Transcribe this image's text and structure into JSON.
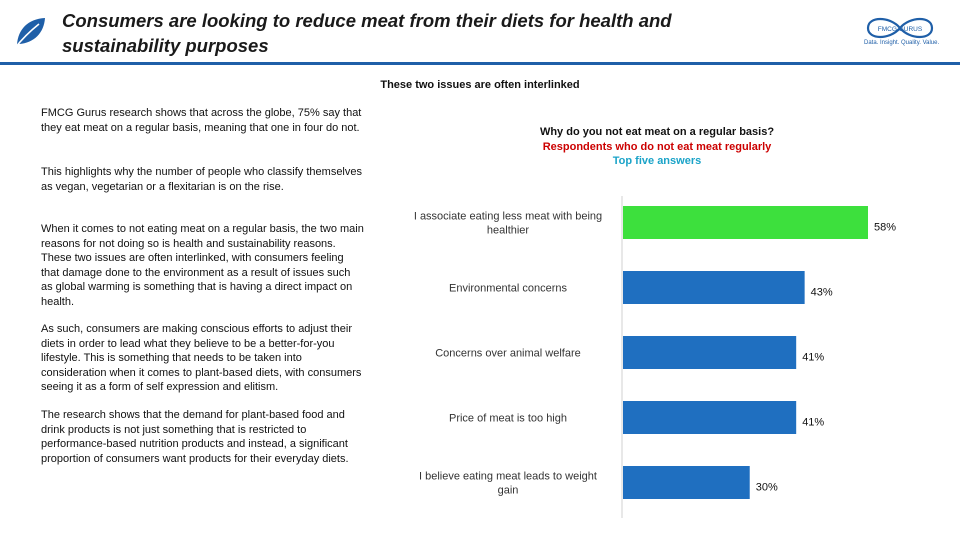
{
  "header": {
    "title": "Consumers are looking to reduce meat from their diets for health and sustainability purposes",
    "logo_text": "FMCG GURUS",
    "logo_tagline": "Data. Insight. Quality. Value."
  },
  "subtitle": "These two issues are often interlinked",
  "body_paragraphs": [
    "FMCG Gurus research shows that across the globe, 75% say that they eat meat on a regular basis, meaning that one in four do not.",
    "This highlights why the number of people who classify themselves as vegan, vegetarian or a flexitarian is on the rise.",
    "When it comes to not eating meat on a regular basis, the two main reasons for not doing so is health and sustainability reasons. These two issues are often interlinked, with consumers feeling that damage done to the environment as a result of issues such as global warming is something that is having a direct impact on health.",
    "As such, consumers are making conscious efforts to adjust their diets in order to lead what they believe to be a better-for-you lifestyle. This is something that needs to be taken into consideration when it comes to plant-based diets, with consumers seeing it as a form of self expression and elitism.",
    "The research shows that the demand for plant-based food and drink products is not just something that is restricted to performance-based nutrition products and instead, a significant proportion of consumers want products for their everyday diets."
  ],
  "colors": {
    "accent": "#1f5fa8",
    "highlight_bar": "#3de03d",
    "bar": "#1f6fc0",
    "respondents": "#cc0000",
    "top_five": "#1aa3c8"
  },
  "chart_data": {
    "type": "bar",
    "orientation": "horizontal",
    "title": "Why do you not eat meat on a regular basis?",
    "subtitle_respondents": "Respondents who do not eat meat regularly",
    "subtitle_top": "Top five answers",
    "categories": [
      "I associate eating less meat with being healthier",
      "Environmental concerns",
      "Concerns over animal welfare",
      "Price of meat is too high",
      "I believe eating meat leads to weight gain"
    ],
    "category_lines": [
      [
        "I associate eating less meat with being",
        "healthier"
      ],
      [
        "Environmental concerns"
      ],
      [
        "Concerns over animal welfare"
      ],
      [
        "Price of meat is too high"
      ],
      [
        "I believe eating meat leads to weight",
        "gain"
      ]
    ],
    "values": [
      58,
      43,
      41,
      41,
      30
    ],
    "value_labels": [
      "58%",
      "43%",
      "41%",
      "41%",
      "30%"
    ],
    "highlight_index": 0,
    "unit": "%",
    "xlim": [
      0,
      60
    ]
  }
}
